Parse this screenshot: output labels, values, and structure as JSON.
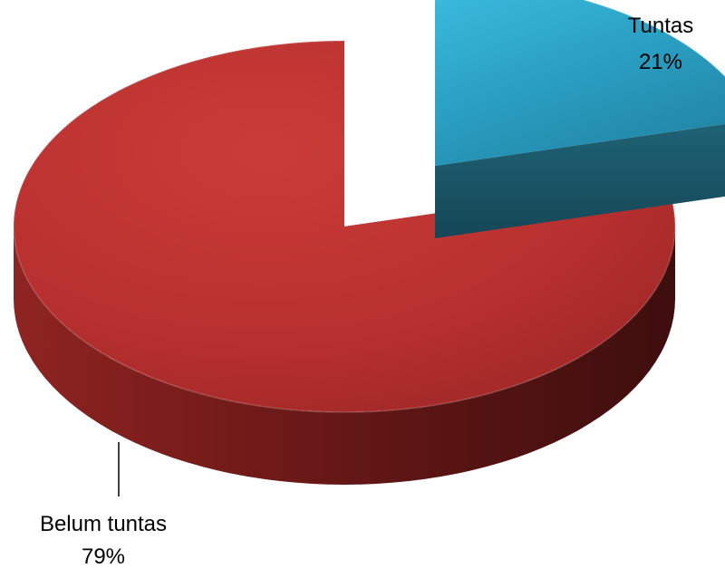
{
  "chart_data": {
    "type": "pie",
    "variant": "3d-exploded",
    "title": "",
    "slices": [
      {
        "name": "Tuntas",
        "value": 21,
        "label": "21%",
        "color": "#31aed4"
      },
      {
        "name": "Belum tuntas",
        "value": 79,
        "label": "79%",
        "color": "#c23a36"
      }
    ],
    "legend": "none"
  }
}
